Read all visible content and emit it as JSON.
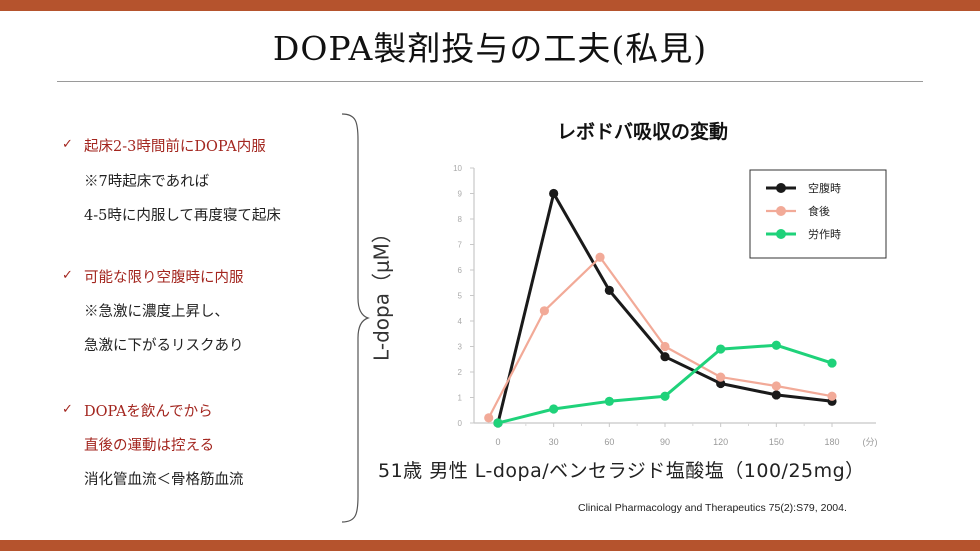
{
  "slide": {
    "title": "DOPA製剤投与の工夫(私見)",
    "colors": {
      "accent_bar": "#b5532d",
      "highlight_text": "#a3261f"
    }
  },
  "points": [
    {
      "lines": [
        {
          "text": "起床2-3時間前にDOPA内服",
          "highlight": true,
          "check": true
        },
        {
          "text": "※7時起床であれば",
          "highlight": false
        },
        {
          "text": "4-5時に内服して再度寝て起床",
          "highlight": false
        }
      ]
    },
    {
      "lines": [
        {
          "text": "可能な限り空腹時に内服",
          "highlight": true,
          "check": true
        },
        {
          "text": "※急激に濃度上昇し、",
          "highlight": false
        },
        {
          "text": "急激に下がるリスクあり",
          "highlight": false
        }
      ]
    },
    {
      "lines": [
        {
          "text": "DOPAを飲んでから",
          "highlight": true,
          "check": true
        },
        {
          "text": "直後の運動は控える",
          "highlight": true
        },
        {
          "text": "消化管血流＜骨格筋血流",
          "highlight": false
        }
      ]
    }
  ],
  "check_mark": "✓",
  "chart_data": {
    "type": "line",
    "title": "レボドバ吸収の変動",
    "ylabel": "L-dopa（μM）",
    "xlabel": "51歳 男性 L-dopa/ベンセラジド塩酸塩（100/25mg）",
    "x_unit": "(分)",
    "x": [
      0,
      30,
      60,
      90,
      120,
      150,
      180
    ],
    "xlim": [
      -5,
      190
    ],
    "ylim": [
      0,
      10
    ],
    "yticks": [
      0,
      1,
      2,
      3,
      4,
      5,
      6,
      7,
      8,
      9,
      10
    ],
    "grid": false,
    "legend_position": "top-right",
    "series": [
      {
        "name": "空腹時",
        "color": "#1a1a1a",
        "stroke_width": 3,
        "points": [
          [
            0,
            0
          ],
          [
            30,
            9.0
          ],
          [
            60,
            5.2
          ],
          [
            90,
            2.6
          ],
          [
            120,
            1.55
          ],
          [
            150,
            1.1
          ],
          [
            180,
            0.85
          ]
        ]
      },
      {
        "name": "食後",
        "color": "#f2aa98",
        "stroke_width": 2.2,
        "points": [
          [
            -5,
            0.2
          ],
          [
            25,
            4.4
          ],
          [
            55,
            6.5
          ],
          [
            90,
            3.0
          ],
          [
            120,
            1.8
          ],
          [
            150,
            1.45
          ],
          [
            180,
            1.05
          ]
        ]
      },
      {
        "name": "労作時",
        "color": "#1fd27a",
        "stroke_width": 3,
        "points": [
          [
            0,
            0
          ],
          [
            30,
            0.55
          ],
          [
            60,
            0.85
          ],
          [
            90,
            1.05
          ],
          [
            120,
            2.9
          ],
          [
            150,
            3.05
          ],
          [
            180,
            2.35
          ]
        ]
      }
    ]
  },
  "citation": "Clinical Pharmacology and Therapeutics 75(2):S79, 2004."
}
